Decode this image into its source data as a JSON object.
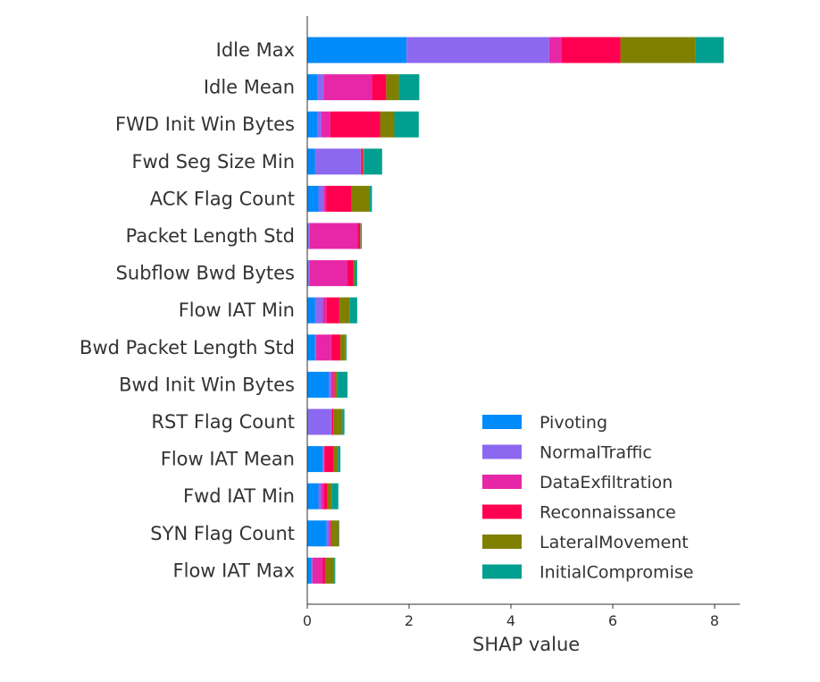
{
  "chart_data": {
    "type": "bar",
    "orientation": "horizontal",
    "stacked": true,
    "xlabel": "SHAP value",
    "xlim": [
      0,
      8.5
    ],
    "xticks": [
      0,
      2,
      4,
      6,
      8
    ],
    "grid": false,
    "legend_position": "lower-right",
    "categories": [
      "Idle Max",
      "Idle Mean",
      "FWD Init Win Bytes",
      "Fwd Seg Size Min",
      "ACK Flag Count",
      "Packet Length Std",
      "Subflow Bwd Bytes",
      "Flow IAT Min",
      "Bwd Packet Length Std",
      "Bwd Init Win Bytes",
      "RST Flag Count",
      "Flow IAT Mean",
      "Fwd IAT Min",
      "SYN Flag Count",
      "Flow IAT Max"
    ],
    "series": [
      {
        "name": "Pivoting",
        "color": "#008bfb",
        "values": [
          1.95,
          0.2,
          0.2,
          0.15,
          0.22,
          0.02,
          0.02,
          0.15,
          0.15,
          0.42,
          0.02,
          0.3,
          0.22,
          0.38,
          0.08
        ]
      },
      {
        "name": "NormalTraffic",
        "color": "#8c68f0",
        "values": [
          2.8,
          0.12,
          0.08,
          0.9,
          0.1,
          0.02,
          0.02,
          0.15,
          0.02,
          0.05,
          0.45,
          0.02,
          0.05,
          0.05,
          0.02
        ]
      },
      {
        "name": "DataExfiltration",
        "color": "#e627a8",
        "values": [
          0.25,
          0.95,
          0.17,
          0.02,
          0.05,
          0.95,
          0.75,
          0.08,
          0.3,
          0.05,
          0.02,
          0.02,
          0.05,
          0.02,
          0.2
        ]
      },
      {
        "name": "Reconnaissance",
        "color": "#ff0051",
        "values": [
          1.15,
          0.28,
          0.98,
          0.02,
          0.5,
          0.05,
          0.12,
          0.25,
          0.18,
          0.02,
          0.02,
          0.18,
          0.08,
          0.02,
          0.05
        ]
      },
      {
        "name": "LateralMovement",
        "color": "#808000",
        "values": [
          1.48,
          0.25,
          0.28,
          0.02,
          0.35,
          0.01,
          0.02,
          0.2,
          0.1,
          0.05,
          0.18,
          0.08,
          0.08,
          0.15,
          0.18
        ]
      },
      {
        "name": "InitialCompromise",
        "color": "#009f8f",
        "values": [
          0.55,
          0.4,
          0.48,
          0.36,
          0.05,
          0.02,
          0.05,
          0.15,
          0.02,
          0.2,
          0.04,
          0.05,
          0.13,
          0.01,
          0.02
        ]
      }
    ]
  }
}
